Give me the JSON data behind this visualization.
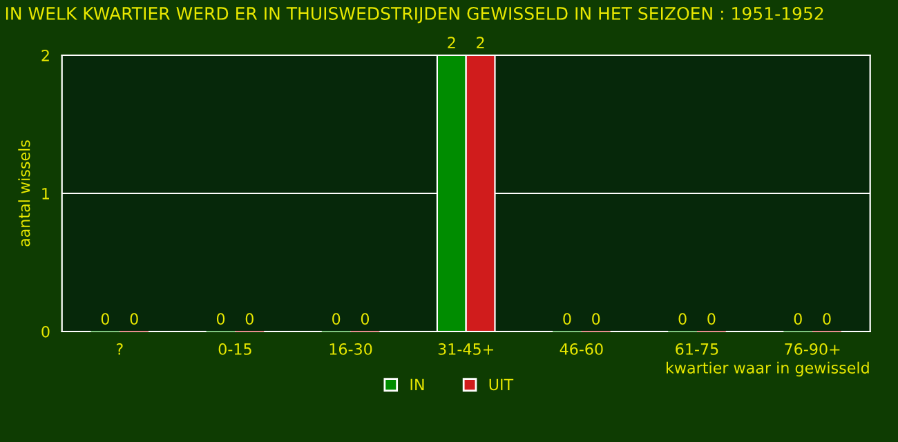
{
  "chart_data": {
    "type": "bar",
    "title": "IN WELK KWARTIER WERD ER IN THUISWEDSTRIJDEN GEWISSELD IN HET SEIZOEN : 1951-1952",
    "xlabel": "kwartier waar in gewisseld",
    "ylabel": "aantal wissels",
    "categories": [
      "?",
      "0-15",
      "16-30",
      "31-45+",
      "46-60",
      "61-75",
      "76-90+"
    ],
    "series": [
      {
        "name": "IN",
        "color": "#008c00",
        "values": [
          0,
          0,
          0,
          2,
          0,
          0,
          0
        ]
      },
      {
        "name": "UIT",
        "color": "#d01c1c",
        "values": [
          0,
          0,
          0,
          2,
          0,
          0,
          0
        ]
      }
    ],
    "ylim": [
      0,
      2
    ],
    "yticks": [
      0,
      1,
      2
    ],
    "grid": "y",
    "legend": "bottom",
    "data_labels": true
  }
}
